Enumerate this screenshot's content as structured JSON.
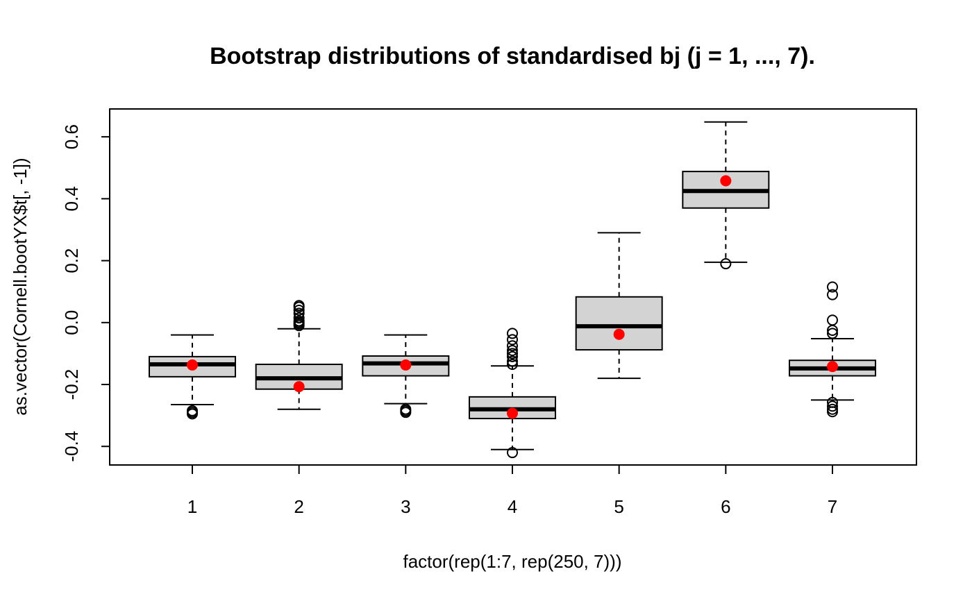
{
  "chart_data": {
    "type": "boxplot",
    "title": "Bootstrap distributions of standardised bj (j = 1, ..., 7).",
    "xlabel": "factor(rep(1:7, rep(250, 7)))",
    "ylabel": "as.vector(Cornell.bootYX$t[, -1])",
    "ylim": [
      -0.46,
      0.69
    ],
    "y_ticks": [
      -0.4,
      -0.2,
      0.0,
      0.2,
      0.4,
      0.6
    ],
    "y_tick_labels": [
      "-0.4",
      "-0.2",
      "0.0",
      "0.2",
      "0.4",
      "0.6"
    ],
    "categories": [
      "1",
      "2",
      "3",
      "4",
      "5",
      "6",
      "7"
    ],
    "boxes": [
      {
        "category": "1",
        "whisker_low": -0.265,
        "q1": -0.175,
        "median": -0.135,
        "q3": -0.11,
        "whisker_high": -0.04,
        "outliers": [
          -0.285,
          -0.29,
          -0.295
        ],
        "point": -0.137
      },
      {
        "category": "2",
        "whisker_low": -0.28,
        "q1": -0.215,
        "median": -0.18,
        "q3": -0.135,
        "whisker_high": -0.02,
        "outliers": [
          -0.01,
          -0.005,
          0.0,
          0.005,
          0.015,
          0.03,
          0.04,
          0.05,
          0.055
        ],
        "point": -0.207
      },
      {
        "category": "3",
        "whisker_low": -0.262,
        "q1": -0.172,
        "median": -0.132,
        "q3": -0.108,
        "whisker_high": -0.04,
        "outliers": [
          -0.28,
          -0.285,
          -0.29
        ],
        "point": -0.137
      },
      {
        "category": "4",
        "whisker_low": -0.41,
        "q1": -0.31,
        "median": -0.28,
        "q3": -0.24,
        "whisker_high": -0.14,
        "outliers": [
          -0.135,
          -0.125,
          -0.11,
          -0.1,
          -0.09,
          -0.075,
          -0.055,
          -0.035,
          -0.42
        ],
        "point": -0.293
      },
      {
        "category": "5",
        "whisker_low": -0.18,
        "q1": -0.088,
        "median": -0.012,
        "q3": 0.083,
        "whisker_high": 0.29,
        "outliers": [],
        "point": -0.038
      },
      {
        "category": "6",
        "whisker_low": 0.195,
        "q1": 0.37,
        "median": 0.425,
        "q3": 0.488,
        "whisker_high": 0.648,
        "outliers": [
          0.19
        ],
        "point": 0.458
      },
      {
        "category": "7",
        "whisker_low": -0.25,
        "q1": -0.172,
        "median": -0.148,
        "q3": -0.122,
        "whisker_high": -0.052,
        "outliers": [
          -0.035,
          -0.025,
          0.008,
          0.09,
          0.115,
          -0.258,
          -0.27,
          -0.28,
          -0.288
        ],
        "point": -0.142
      }
    ],
    "box_fill": "#d3d3d3",
    "point_color": "#ff0000",
    "grid": false
  }
}
